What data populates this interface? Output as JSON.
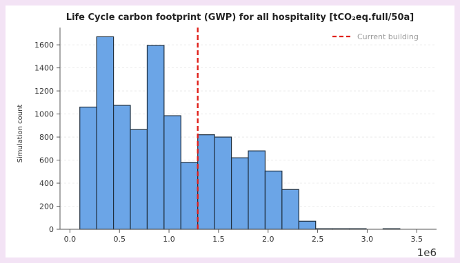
{
  "colors": {
    "page_background": "#f3e3f5",
    "bar_fill": "#6ba5e7",
    "bar_edge": "#1f2f3f",
    "reference_line": "#e0201a",
    "grid": "#e6e6e6",
    "axis": "#555555"
  },
  "chart_data": {
    "type": "bar",
    "title": "Life Cycle carbon footprint (GWP) for all hospitality [tCO₂eq.full/50a]",
    "xlabel": "",
    "ylabel": "Simulation count",
    "x_offset_label": "1e6",
    "xlim": [
      -0.1,
      3.7
    ],
    "ylim": [
      0,
      1750
    ],
    "x_ticks": [
      0.0,
      0.5,
      1.0,
      1.5,
      2.0,
      2.5,
      3.0,
      3.5
    ],
    "x_tick_labels": [
      "0.0",
      "0.5",
      "1.0",
      "1.5",
      "2.0",
      "2.5",
      "3.0",
      "3.5"
    ],
    "y_ticks": [
      0,
      200,
      400,
      600,
      800,
      1000,
      1200,
      1400,
      1600
    ],
    "y_tick_labels": [
      "0",
      "200",
      "400",
      "600",
      "800",
      "1000",
      "1200",
      "1400",
      "1600"
    ],
    "grid": "horizontal",
    "legend_position": "top-right",
    "bins": [
      {
        "x0": 0.1,
        "x1": 0.27,
        "count": 1060
      },
      {
        "x0": 0.27,
        "x1": 0.44,
        "count": 1670
      },
      {
        "x0": 0.44,
        "x1": 0.61,
        "count": 1075
      },
      {
        "x0": 0.61,
        "x1": 0.78,
        "count": 865
      },
      {
        "x0": 0.78,
        "x1": 0.95,
        "count": 1595
      },
      {
        "x0": 0.95,
        "x1": 1.12,
        "count": 985
      },
      {
        "x0": 1.12,
        "x1": 1.29,
        "count": 580
      },
      {
        "x0": 1.29,
        "x1": 1.46,
        "count": 820
      },
      {
        "x0": 1.46,
        "x1": 1.63,
        "count": 800
      },
      {
        "x0": 1.63,
        "x1": 1.8,
        "count": 620
      },
      {
        "x0": 1.8,
        "x1": 1.97,
        "count": 680
      },
      {
        "x0": 1.97,
        "x1": 2.14,
        "count": 505
      },
      {
        "x0": 2.14,
        "x1": 2.31,
        "count": 345
      },
      {
        "x0": 2.31,
        "x1": 2.48,
        "count": 70
      },
      {
        "x0": 2.48,
        "x1": 2.65,
        "count": 5
      },
      {
        "x0": 2.65,
        "x1": 2.82,
        "count": 5
      },
      {
        "x0": 2.82,
        "x1": 2.99,
        "count": 5
      },
      {
        "x0": 2.99,
        "x1": 3.16,
        "count": 0
      },
      {
        "x0": 3.16,
        "x1": 3.33,
        "count": 5
      }
    ],
    "reference_line": {
      "name": "Current building",
      "x": 1.29
    }
  }
}
